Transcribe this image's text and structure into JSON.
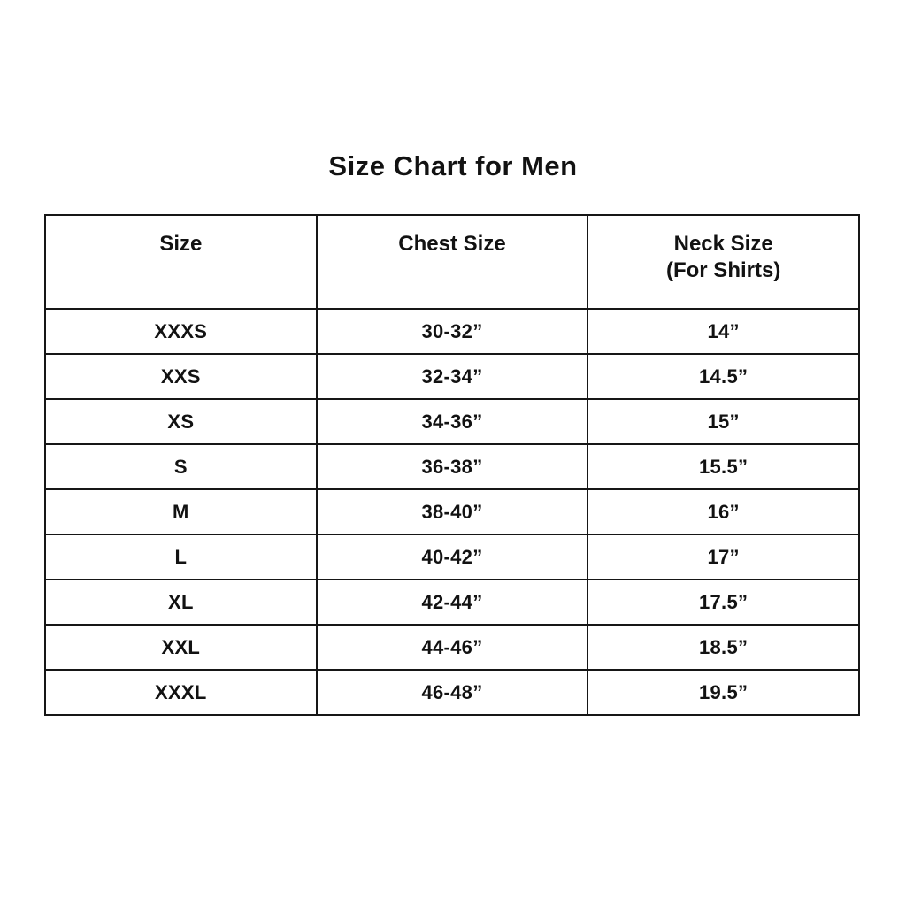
{
  "page": {
    "title": "Size Chart for Men"
  },
  "chart_data": {
    "type": "table",
    "title": "Size Chart for Men",
    "columns": [
      "Size",
      "Chest Size",
      "Neck Size\n(For Shirts)"
    ],
    "rows": [
      [
        "XXXS",
        "30-32”",
        "14”"
      ],
      [
        "XXS",
        "32-34”",
        "14.5”"
      ],
      [
        "XS",
        "34-36”",
        "15”"
      ],
      [
        "S",
        "36-38”",
        "15.5”"
      ],
      [
        "M",
        "38-40”",
        "16”"
      ],
      [
        "L",
        "40-42”",
        "17”"
      ],
      [
        "XL",
        "42-44”",
        "17.5”"
      ],
      [
        "XXL",
        "44-46”",
        "18.5”"
      ],
      [
        "XXXL",
        "46-48”",
        "19.5”"
      ]
    ],
    "layout": {
      "grid": "full-borders",
      "border_color": "#161616",
      "background_color": "#ffffff",
      "text_color": "#121212"
    }
  }
}
